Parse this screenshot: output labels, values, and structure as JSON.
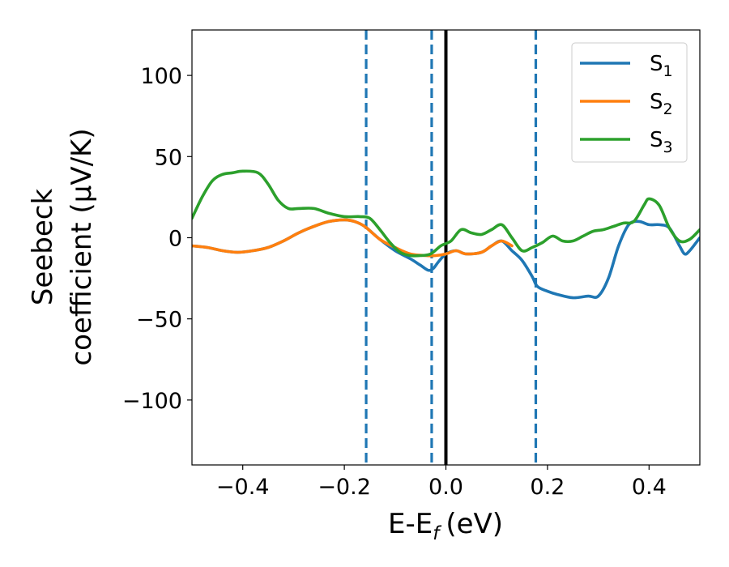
{
  "chart_data": {
    "type": "line",
    "xlabel": "E-E",
    "xlabel_sub": "f",
    "xlabel_unit": "(eV)",
    "ylabel_line1": "Seebeck",
    "ylabel_line2": "coefficient (μV/K)",
    "xlim": [
      -0.5,
      0.5
    ],
    "ylim": [
      -140,
      128
    ],
    "x_ticks": [
      -0.4,
      -0.2,
      0.0,
      0.2,
      0.4
    ],
    "x_tick_labels": [
      "−0.4",
      "−0.2",
      "0.0",
      "0.2",
      "0.4"
    ],
    "y_ticks": [
      100,
      50,
      0,
      -50,
      -100
    ],
    "y_tick_labels": [
      "100",
      "50",
      "0",
      "−50",
      "−100"
    ],
    "grid": false,
    "legend_position": "top-right",
    "vlines": [
      {
        "x": -0.157,
        "style": "dashed",
        "color": "#1f77b4"
      },
      {
        "x": -0.028,
        "style": "dashed",
        "color": "#1f77b4"
      },
      {
        "x": 0.0,
        "style": "solid",
        "color": "#000000"
      },
      {
        "x": 0.177,
        "style": "dashed",
        "color": "#1f77b4"
      }
    ],
    "series": [
      {
        "name": "S",
        "sub": "1",
        "color": "#1f77b4",
        "x": [
          -0.5,
          -0.47,
          -0.44,
          -0.41,
          -0.38,
          -0.35,
          -0.32,
          -0.29,
          -0.26,
          -0.23,
          -0.2,
          -0.18,
          -0.16,
          -0.13,
          -0.1,
          -0.07,
          -0.05,
          -0.035,
          -0.025,
          -0.015,
          0.0,
          0.02,
          0.04,
          0.07,
          0.09,
          0.11,
          0.13,
          0.15,
          0.17,
          0.18,
          0.2,
          0.22,
          0.25,
          0.28,
          0.3,
          0.32,
          0.34,
          0.36,
          0.38,
          0.4,
          0.42,
          0.44,
          0.46,
          0.47,
          0.48,
          0.5
        ],
        "y": [
          -5,
          -6,
          -8,
          -9,
          -8,
          -6,
          -2,
          3,
          7,
          10,
          11,
          10,
          7,
          -1,
          -8,
          -13,
          -17,
          -20,
          -19,
          -15,
          -10,
          -8,
          -10,
          -9,
          -5,
          -2,
          -8,
          -14,
          -24,
          -30,
          -33,
          -35,
          -37,
          -36,
          -36,
          -25,
          -5,
          8,
          10,
          8,
          8,
          6,
          -5,
          -10,
          -8,
          0
        ]
      },
      {
        "name": "S",
        "sub": "2",
        "color": "#ff7f0e",
        "x": [
          -0.5,
          -0.47,
          -0.44,
          -0.41,
          -0.38,
          -0.35,
          -0.32,
          -0.29,
          -0.26,
          -0.23,
          -0.2,
          -0.18,
          -0.16,
          -0.13,
          -0.1,
          -0.07,
          -0.04,
          -0.02,
          0.0,
          0.02,
          0.04,
          0.07,
          0.09,
          0.11,
          0.13
        ],
        "y": [
          -5,
          -6,
          -8,
          -9,
          -8,
          -6,
          -2,
          3,
          7,
          10,
          11,
          10,
          7,
          -1,
          -6,
          -10,
          -11,
          -11,
          -10,
          -8,
          -10,
          -9,
          -5,
          -2,
          -5
        ]
      },
      {
        "name": "S",
        "sub": "3",
        "color": "#2ca02c",
        "x": [
          -0.5,
          -0.48,
          -0.46,
          -0.44,
          -0.42,
          -0.4,
          -0.37,
          -0.35,
          -0.33,
          -0.31,
          -0.29,
          -0.26,
          -0.23,
          -0.2,
          -0.17,
          -0.15,
          -0.13,
          -0.11,
          -0.09,
          -0.07,
          -0.05,
          -0.03,
          -0.01,
          0.01,
          0.03,
          0.05,
          0.07,
          0.09,
          0.11,
          0.13,
          0.15,
          0.17,
          0.19,
          0.21,
          0.23,
          0.25,
          0.27,
          0.29,
          0.31,
          0.33,
          0.35,
          0.37,
          0.39,
          0.4,
          0.42,
          0.44,
          0.46,
          0.48,
          0.5
        ],
        "y": [
          12,
          25,
          35,
          39,
          40,
          41,
          40,
          33,
          23,
          18,
          18,
          18,
          15,
          13,
          13,
          12,
          5,
          -3,
          -9,
          -11,
          -11,
          -10,
          -5,
          -2,
          5,
          3,
          2,
          5,
          8,
          0,
          -8,
          -6,
          -3,
          1,
          -2,
          -2,
          1,
          4,
          5,
          7,
          9,
          10,
          20,
          24,
          20,
          6,
          -2,
          -1,
          5
        ]
      }
    ]
  }
}
